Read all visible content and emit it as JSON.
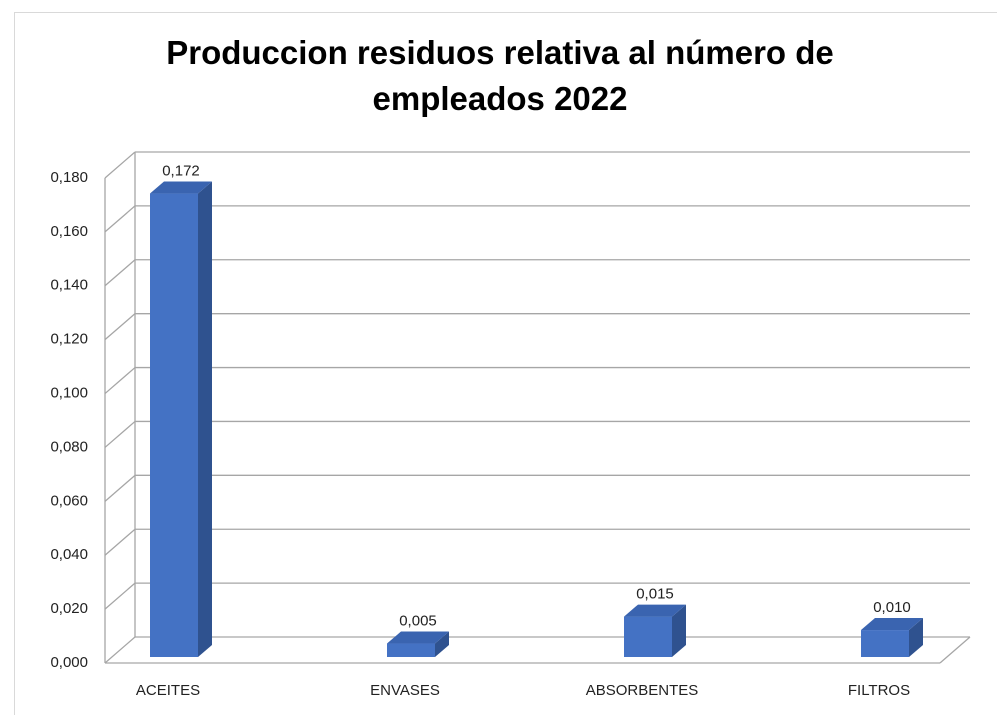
{
  "chart_data": {
    "type": "bar3d",
    "title": "Produccion residuos relativa al número de empleados 2022",
    "categories": [
      "ACEITES",
      "ENVASES",
      "ABSORBENTES",
      "FILTROS"
    ],
    "values": [
      0.172,
      0.005,
      0.015,
      0.01
    ],
    "value_labels": [
      "0,172",
      "0,005",
      "0,015",
      "0,010"
    ],
    "color": "#4472c4",
    "ylim": [
      0,
      0.18
    ],
    "yticks": [
      {
        "value": 0,
        "label": "0,000"
      },
      {
        "value": 0.02,
        "label": "0,020"
      },
      {
        "value": 0.04,
        "label": "0,040"
      },
      {
        "value": 0.06,
        "label": "0,060"
      },
      {
        "value": 0.08,
        "label": "0,080"
      },
      {
        "value": 0.1,
        "label": "0,100"
      },
      {
        "value": 0.12,
        "label": "0,120"
      },
      {
        "value": 0.14,
        "label": "0,140"
      },
      {
        "value": 0.16,
        "label": "0,160"
      },
      {
        "value": 0.18,
        "label": "0,180"
      }
    ],
    "grid": true
  }
}
